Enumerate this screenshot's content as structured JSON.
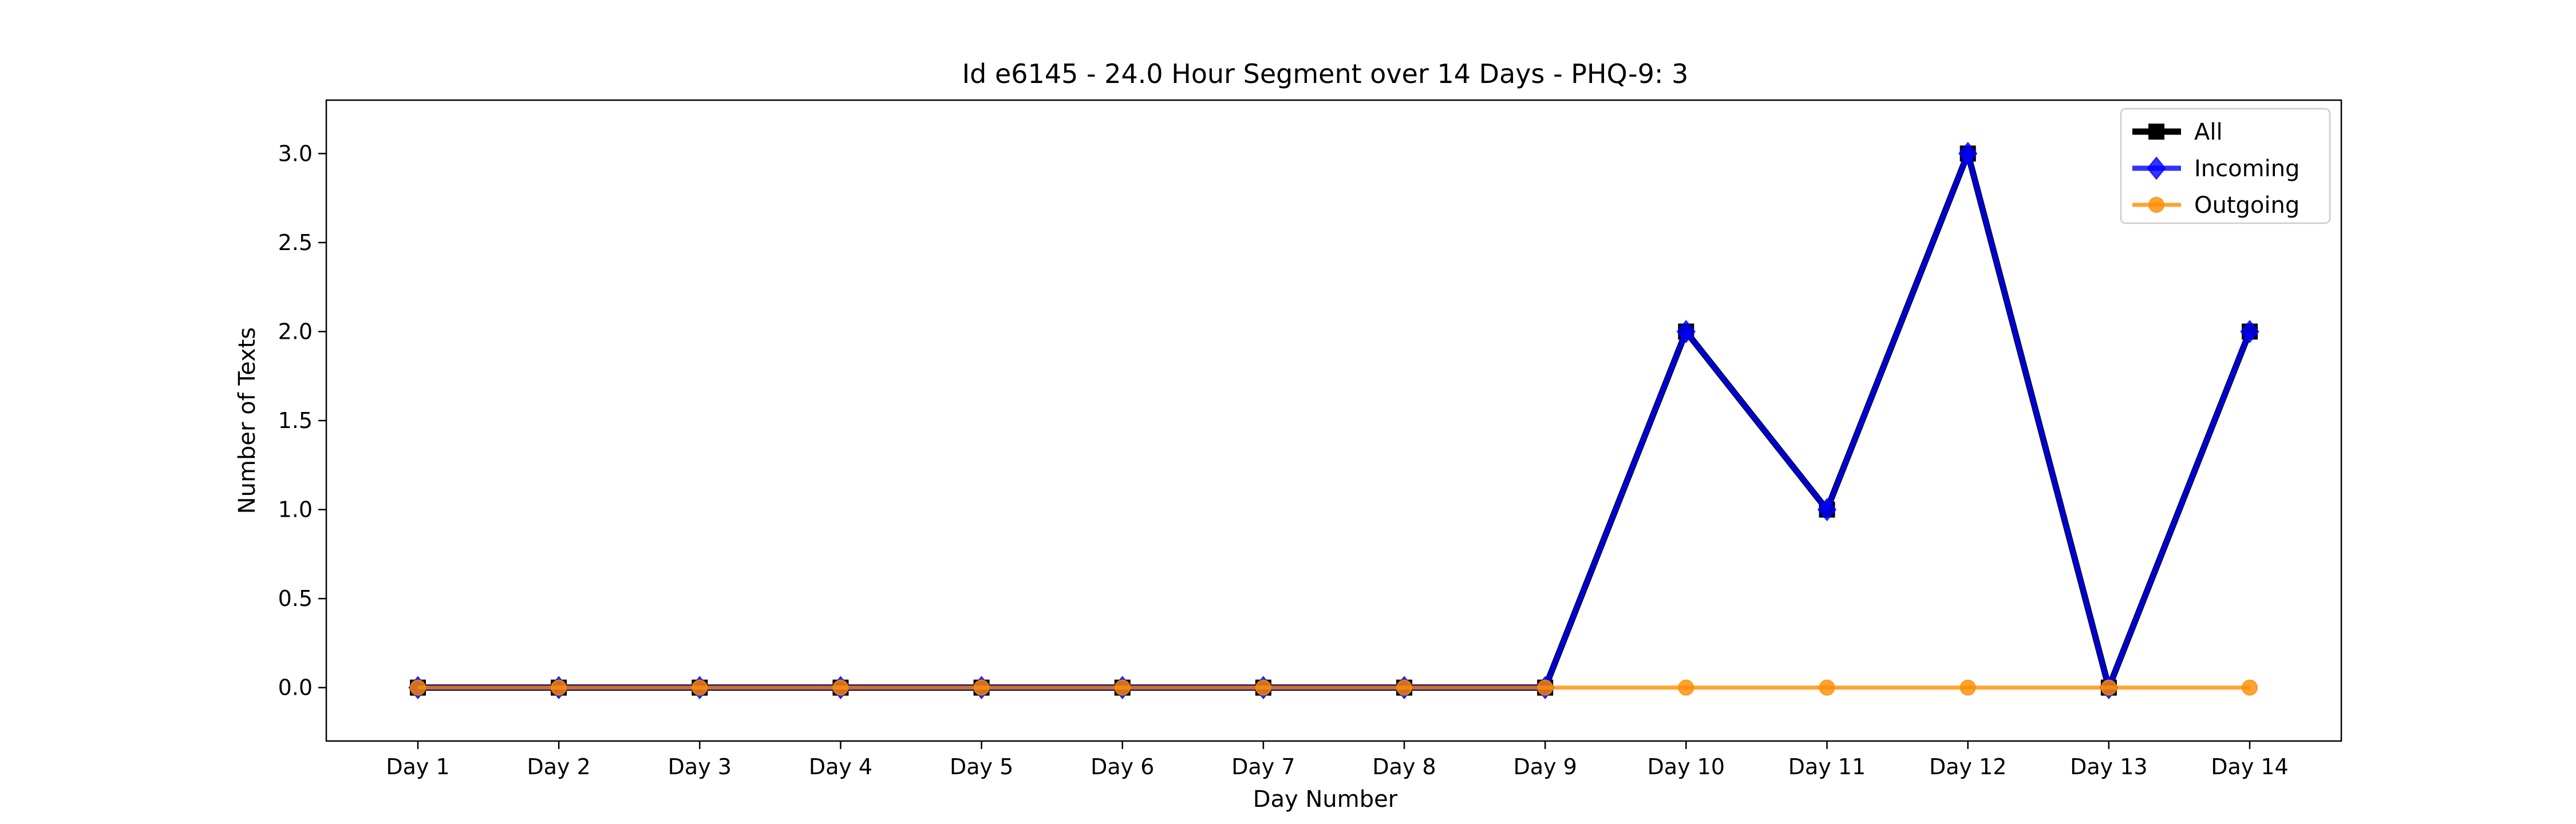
{
  "chart_data": {
    "type": "line",
    "title": "Id e6145 - 24.0 Hour Segment over 14 Days - PHQ-9: 3",
    "xlabel": "Day Number",
    "ylabel": "Number of Texts",
    "categories": [
      "Day 1",
      "Day 2",
      "Day 3",
      "Day 4",
      "Day 5",
      "Day 6",
      "Day 7",
      "Day 8",
      "Day 9",
      "Day 10",
      "Day 11",
      "Day 12",
      "Day 13",
      "Day 14"
    ],
    "ylim": [
      -0.3,
      3.3
    ],
    "yticks": [
      0.0,
      0.5,
      1.0,
      1.5,
      2.0,
      2.5,
      3.0
    ],
    "ytick_labels": [
      "0.0",
      "0.5",
      "1.0",
      "1.5",
      "2.0",
      "2.5",
      "3.0"
    ],
    "grid": false,
    "legend_position": "top-right",
    "series": [
      {
        "name": "All",
        "color": "#000000",
        "marker": "square",
        "values": [
          0,
          0,
          0,
          0,
          0,
          0,
          0,
          0,
          0,
          2,
          1,
          3,
          0,
          2
        ]
      },
      {
        "name": "Incoming",
        "color": "#0000ff",
        "marker": "diamond",
        "values": [
          0,
          0,
          0,
          0,
          0,
          0,
          0,
          0,
          0,
          2,
          1,
          3,
          0,
          2
        ]
      },
      {
        "name": "Outgoing",
        "color": "#ff8c00",
        "marker": "circle",
        "values": [
          0,
          0,
          0,
          0,
          0,
          0,
          0,
          0,
          0,
          0,
          0,
          0,
          0,
          0
        ]
      }
    ]
  }
}
